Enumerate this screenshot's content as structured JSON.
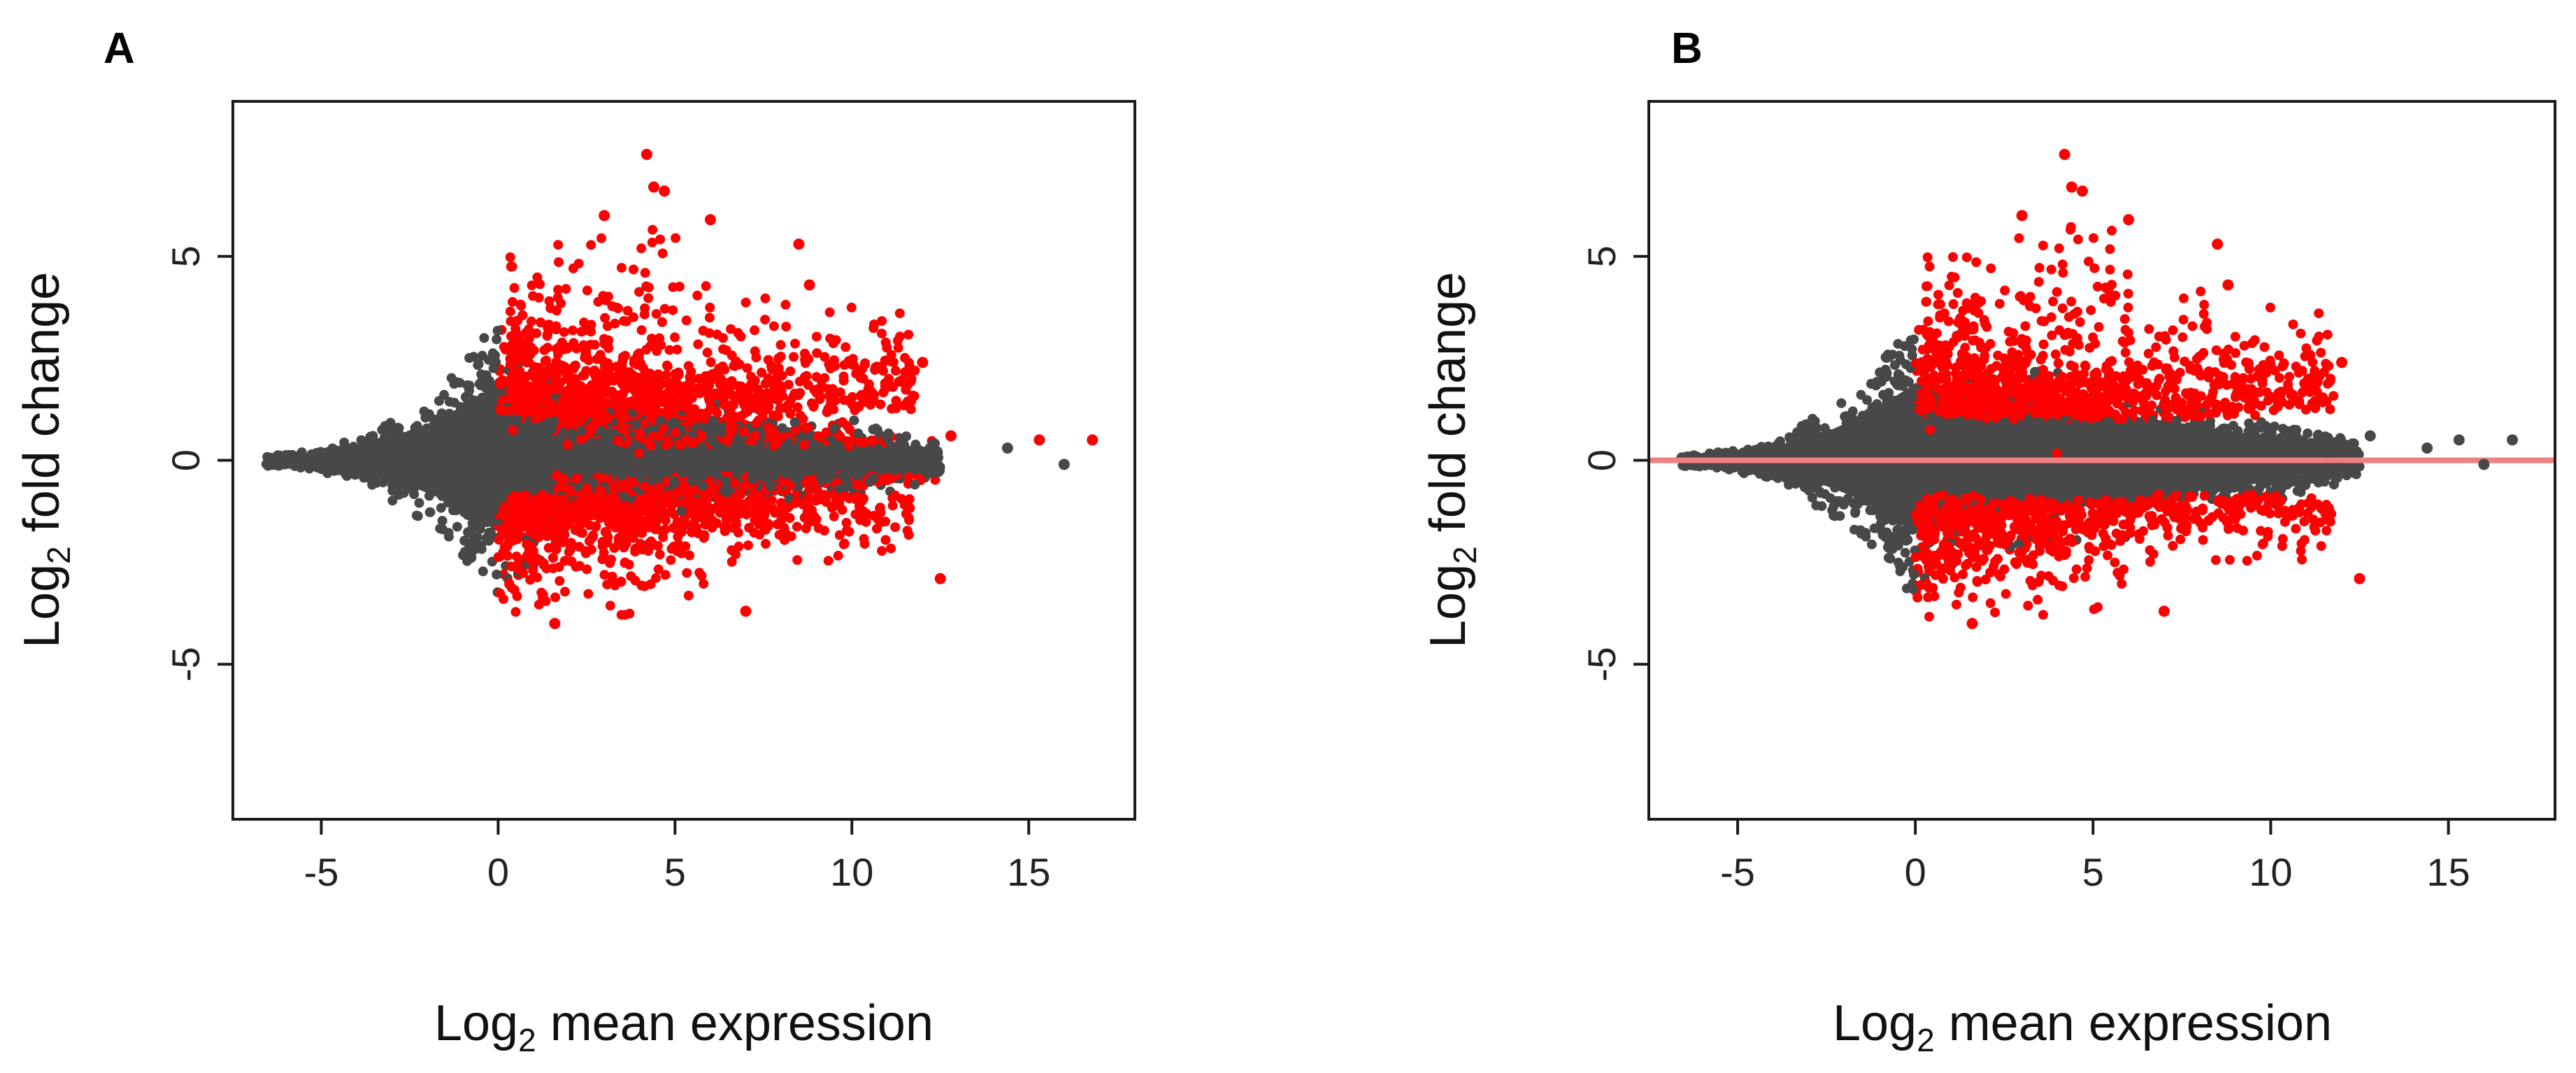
{
  "figure": {
    "panels": [
      "A",
      "B"
    ]
  },
  "chart_data": [
    {
      "panel": "A",
      "type": "scatter",
      "title": "",
      "xlabel_base": "Log",
      "xlabel_sub": "2",
      "xlabel_rest": " mean expression",
      "ylabel_base": "Log",
      "ylabel_sub": "2",
      "ylabel_rest": " fold change",
      "xlim": [
        -7.5,
        18
      ],
      "ylim": [
        -8.8,
        8.8
      ],
      "xticks": [
        -5,
        0,
        5,
        10,
        15
      ],
      "xtick_labels": [
        "-5",
        "0",
        "5",
        "10",
        "15"
      ],
      "yticks": [
        -5,
        0,
        5
      ],
      "ytick_labels": [
        "-5",
        "0",
        "5"
      ],
      "horizontal_line": null,
      "colors": {
        "not_significant": "#484848",
        "significant": "#ff0000",
        "zero_line": "#f08080"
      },
      "series": [
        {
          "name": "not significant",
          "color": "#484848",
          "description": "funnel-shaped cloud: wide near x≈0 (|y| up to ~3.5), tapering to near 0 at x≈-6.5 and x≈12"
        },
        {
          "name": "significant",
          "color": "#ff0000",
          "points": [
            [
              4.2,
              7.5
            ],
            [
              4.4,
              6.7
            ],
            [
              4.7,
              6.6
            ],
            [
              3.0,
              6.0
            ],
            [
              6.0,
              5.9
            ],
            [
              8.5,
              5.3
            ],
            [
              8.8,
              4.3
            ],
            [
              12.0,
              2.4
            ],
            [
              12.8,
              0.6
            ],
            [
              15.3,
              0.5
            ],
            [
              16.8,
              0.5
            ],
            [
              12.5,
              -2.9
            ],
            [
              7.0,
              -3.7
            ],
            [
              1.6,
              -4.0
            ]
          ]
        },
        {
          "name": "not significant outliers",
          "color": "#484848",
          "points": [
            [
              14.4,
              0.3
            ],
            [
              16.0,
              -0.1
            ],
            [
              12.3,
              0.4
            ],
            [
              11.6,
              0.2
            ],
            [
              12.0,
              -0.2
            ]
          ]
        }
      ]
    },
    {
      "panel": "B",
      "type": "scatter",
      "title": "",
      "xlabel_base": "Log",
      "xlabel_sub": "2",
      "xlabel_rest": " mean expression",
      "ylabel_base": "Log",
      "ylabel_sub": "2",
      "ylabel_rest": " fold change",
      "xlim": [
        -7.5,
        18
      ],
      "ylim": [
        -8.8,
        8.8
      ],
      "xticks": [
        -5,
        0,
        5,
        10,
        15
      ],
      "xtick_labels": [
        "-5",
        "0",
        "5",
        "10",
        "15"
      ],
      "yticks": [
        -5,
        0,
        5
      ],
      "ytick_labels": [
        "-5",
        "0",
        "5"
      ],
      "horizontal_line": 0,
      "colors": {
        "not_significant": "#484848",
        "significant": "#ff0000",
        "zero_line": "#f08080"
      },
      "series": [
        {
          "name": "not significant",
          "color": "#484848",
          "description": "funnel-shaped cloud; all points with |y| below ~1 are grey across the full x range"
        },
        {
          "name": "significant",
          "color": "#ff0000",
          "points": [
            [
              4.2,
              7.5
            ],
            [
              4.4,
              6.7
            ],
            [
              4.7,
              6.6
            ],
            [
              3.0,
              6.0
            ],
            [
              6.0,
              5.9
            ],
            [
              8.5,
              5.3
            ],
            [
              8.8,
              4.3
            ],
            [
              12.0,
              2.4
            ],
            [
              12.5,
              -2.9
            ],
            [
              7.0,
              -3.7
            ],
            [
              1.6,
              -4.0
            ]
          ]
        },
        {
          "name": "not significant outliers",
          "color": "#484848",
          "points": [
            [
              12.8,
              0.6
            ],
            [
              14.4,
              0.3
            ],
            [
              15.3,
              0.5
            ],
            [
              16.0,
              -0.1
            ],
            [
              16.8,
              0.5
            ],
            [
              12.3,
              0.4
            ],
            [
              11.6,
              0.2
            ],
            [
              12.0,
              -0.2
            ]
          ]
        }
      ]
    }
  ]
}
